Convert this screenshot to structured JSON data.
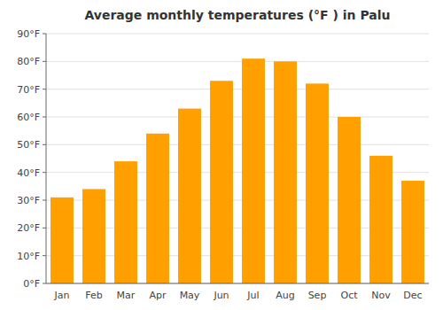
{
  "chart_data": {
    "type": "bar",
    "title": "Average monthly temperatures (°F ) in Palu",
    "categories": [
      "Jan",
      "Feb",
      "Mar",
      "Apr",
      "May",
      "Jun",
      "Jul",
      "Aug",
      "Sep",
      "Oct",
      "Nov",
      "Dec"
    ],
    "values": [
      31,
      34,
      44,
      54,
      63,
      73,
      81,
      80,
      72,
      60,
      46,
      37
    ],
    "color": "#FFA000",
    "ylim": [
      0,
      90
    ],
    "yticks": [
      {
        "value": 0,
        "label": "0°F"
      },
      {
        "value": 10,
        "label": "10°F"
      },
      {
        "value": 20,
        "label": "20°F"
      },
      {
        "value": 30,
        "label": "30°F"
      },
      {
        "value": 40,
        "label": "40°F"
      },
      {
        "value": 50,
        "label": "50°F"
      },
      {
        "value": 60,
        "label": "60°F"
      },
      {
        "value": 70,
        "label": "70°F"
      },
      {
        "value": 80,
        "label": "80°F"
      },
      {
        "value": 90,
        "label": "90°F"
      }
    ],
    "grid": true
  }
}
